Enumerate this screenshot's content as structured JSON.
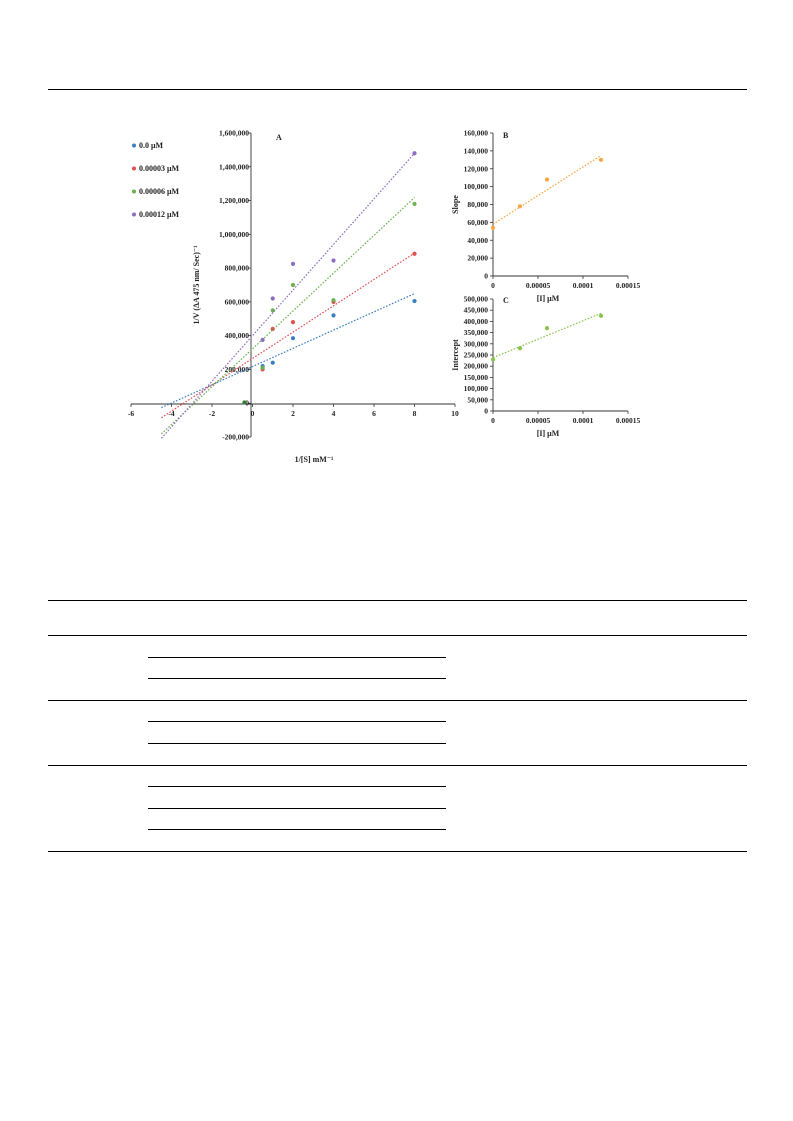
{
  "figure": {
    "chart_data": [
      {
        "panel": "A",
        "type": "scatter",
        "xlabel": "1/[S] mM⁻¹",
        "ylabel": "1/V (ΔA 475 nm/ Sec)⁻¹",
        "xlim": [
          -6,
          10
        ],
        "ylim": [
          -200000,
          1600000
        ],
        "x_ticks": [
          "-6",
          "-4",
          "-2",
          "0",
          "2",
          "4",
          "6",
          "8",
          "10"
        ],
        "y_ticks": [
          "-200,000",
          "0",
          "200,000",
          "400,000",
          "600,000",
          "800,000",
          "1,000,000",
          "1,200,000",
          "1,400,000",
          "1,600,000"
        ],
        "grid": false,
        "legend_position": "top-left",
        "series": [
          {
            "name": "0.0 μM",
            "color": "#3a7fc4",
            "x": [
              0.5,
              1,
              2,
              4,
              8
            ],
            "y": [
              220000,
              240000,
              385000,
              520000,
              605000
            ],
            "trend": [
              54000,
              217000
            ]
          },
          {
            "name": "0.00003 μM",
            "color": "#e05050",
            "x": [
              0.5,
              1,
              2,
              4,
              8
            ],
            "y": [
              200000,
              440000,
              480000,
              600000,
              885000
            ],
            "trend": [
              78000,
              265000
            ]
          },
          {
            "name": "0.00006 μM",
            "color": "#6ab04c",
            "x": [
              0.5,
              1,
              2,
              4,
              8
            ],
            "y": [
              210000,
              550000,
              700000,
              610000,
              1180000
            ],
            "trend": [
              112000,
              322000
            ]
          },
          {
            "name": "0.00012 μM",
            "color": "#8e6cc0",
            "x": [
              0.5,
              1,
              2,
              4,
              8
            ],
            "y": [
              375000,
              620000,
              825000,
              845000,
              1480000
            ],
            "trend": [
              135000,
              400000
            ]
          }
        ],
        "extra_points": [
          {
            "x": -0.4,
            "y": 5000,
            "color": "#2e7d32"
          }
        ]
      },
      {
        "panel": "B",
        "type": "scatter",
        "xlabel": "[I] μM",
        "ylabel": "Slope",
        "xlim": [
          0,
          0.00015
        ],
        "ylim": [
          0,
          160000
        ],
        "x_ticks": [
          "0",
          "0.00005",
          "0.0001",
          "0.00015"
        ],
        "y_ticks": [
          "0",
          "20,000",
          "40,000",
          "60,000",
          "80,000",
          "100,000",
          "120,000",
          "140,000",
          "160,000"
        ],
        "grid": false,
        "series": [
          {
            "name": "",
            "color": "#f5a742",
            "x": [
              0,
              3e-05,
              6e-05,
              0.00012
            ],
            "y": [
              54000,
              78000,
              108000,
              130000
            ],
            "trend": [
              640000000,
              58000
            ]
          }
        ]
      },
      {
        "panel": "C",
        "type": "scatter",
        "xlabel": "[I] μM",
        "ylabel": "Intercept",
        "xlim": [
          0,
          0.00015
        ],
        "ylim": [
          0,
          500000
        ],
        "x_ticks": [
          "0",
          "0.00005",
          "0.0001",
          "0.00015"
        ],
        "y_ticks": [
          "0",
          "50,000",
          "100,000",
          "150,000",
          "200,000",
          "250,000",
          "300,000",
          "350,000",
          "400,000",
          "450,000",
          "500,000"
        ],
        "grid": false,
        "series": [
          {
            "name": "",
            "color": "#8bc34a",
            "x": [
              0,
              3e-05,
              6e-05,
              0.00012
            ],
            "y": [
              230000,
              280000,
              370000,
              425000
            ],
            "trend": [
              1650000000,
              238000
            ]
          }
        ]
      }
    ]
  }
}
